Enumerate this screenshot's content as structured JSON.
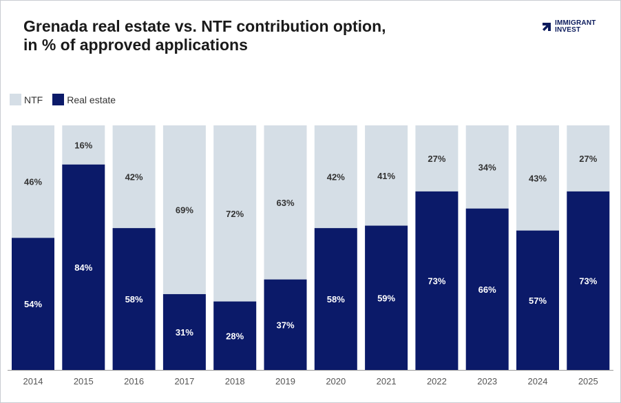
{
  "header": {
    "title_line1": "Grenada real estate vs. NTF contribution option,",
    "title_line2": "in % of approved applications"
  },
  "logo": {
    "line1": "IMMIGRANT",
    "line2": "INVEST",
    "icon": "arrow-chevron-icon",
    "color": "#0b1a5c"
  },
  "legend": {
    "items": [
      {
        "label": "NTF",
        "color": "#d5dee6"
      },
      {
        "label": "Real estate",
        "color": "#0b1a69"
      }
    ]
  },
  "chart_data": {
    "type": "bar",
    "stacked": true,
    "percent_stacked": true,
    "categories": [
      "2014",
      "2015",
      "2016",
      "2017",
      "2018",
      "2019",
      "2020",
      "2021",
      "2022",
      "2023",
      "2024",
      "2025"
    ],
    "series": [
      {
        "name": "Real estate",
        "color": "#0b1a69",
        "label_color": "#ffffff",
        "values": [
          54,
          84,
          58,
          31,
          28,
          37,
          58,
          59,
          73,
          66,
          57,
          73
        ],
        "labels": [
          "54%",
          "84%",
          "58%",
          "31%",
          "28%",
          "37%",
          "58%",
          "59%",
          "73%",
          "66%",
          "57%",
          "73%"
        ]
      },
      {
        "name": "NTF",
        "color": "#d5dee6",
        "label_color": "#333333",
        "values": [
          46,
          16,
          42,
          69,
          72,
          63,
          42,
          41,
          27,
          34,
          43,
          27
        ],
        "labels": [
          "46%",
          "16%",
          "42%",
          "69%",
          "72%",
          "63%",
          "42%",
          "41%",
          "27%",
          "34%",
          "43%",
          "27%"
        ]
      }
    ],
    "ylim": [
      0,
      100
    ],
    "grid": false,
    "legend_position": "top-left",
    "axis_line_color": "#999999"
  }
}
